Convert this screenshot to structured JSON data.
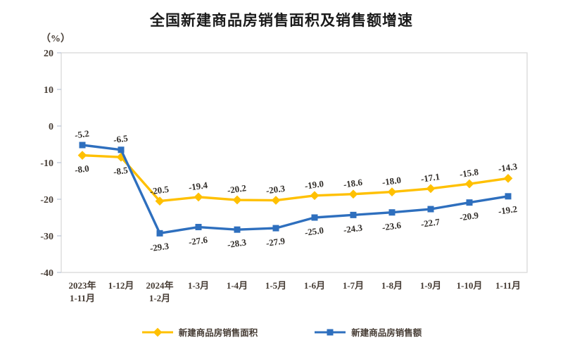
{
  "title": "全国新建商品房销售面积及销售额增速",
  "unit_label": "（%）",
  "chart_data": {
    "type": "line",
    "categories": [
      "2023年\n1-11月",
      "1-12月",
      "2024年\n1-2月",
      "1-3月",
      "1-4月",
      "1-5月",
      "1-6月",
      "1-7月",
      "1-8月",
      "1-9月",
      "1-10月",
      "1-11月"
    ],
    "series": [
      {
        "name": "新建商品房销售面积",
        "color": "#FFC000",
        "marker": "diamond",
        "values": [
          -8.0,
          -8.5,
          -20.5,
          -19.4,
          -20.2,
          -20.3,
          -19.0,
          -18.6,
          -18.0,
          -17.1,
          -15.8,
          -14.3
        ],
        "label_positions": [
          "below",
          "below",
          "above",
          "above",
          "above",
          "above",
          "above",
          "above",
          "above",
          "above",
          "above",
          "above"
        ]
      },
      {
        "name": "新建商品房销售额",
        "color": "#2E6FBE",
        "marker": "square",
        "values": [
          -5.2,
          -6.5,
          -29.3,
          -27.6,
          -28.3,
          -27.9,
          -25.0,
          -24.3,
          -23.6,
          -22.7,
          -20.9,
          -19.2
        ],
        "label_positions": [
          "above",
          "above",
          "below",
          "below",
          "below",
          "below",
          "below",
          "below",
          "below",
          "below",
          "below",
          "below"
        ]
      }
    ],
    "title": "全国新建商品房销售面积及销售额增速",
    "xlabel": "",
    "ylabel": "（%）",
    "ylim": [
      -40,
      20
    ],
    "ytick_step": 10,
    "yticks": [
      20,
      10,
      0,
      -10,
      -20,
      -30,
      -40
    ],
    "grid": false,
    "legend_position": "bottom"
  },
  "legend": {
    "items": [
      {
        "label": "新建商品房销售面积",
        "color": "#FFC000",
        "marker": "diamond"
      },
      {
        "label": "新建商品房销售额",
        "color": "#2E6FBE",
        "marker": "square"
      }
    ]
  },
  "colors": {
    "series_area": "#FFC000",
    "series_amount": "#2E6FBE",
    "plot_frame": "#D9D9D9",
    "axis_tick": "#B9C3D6"
  }
}
